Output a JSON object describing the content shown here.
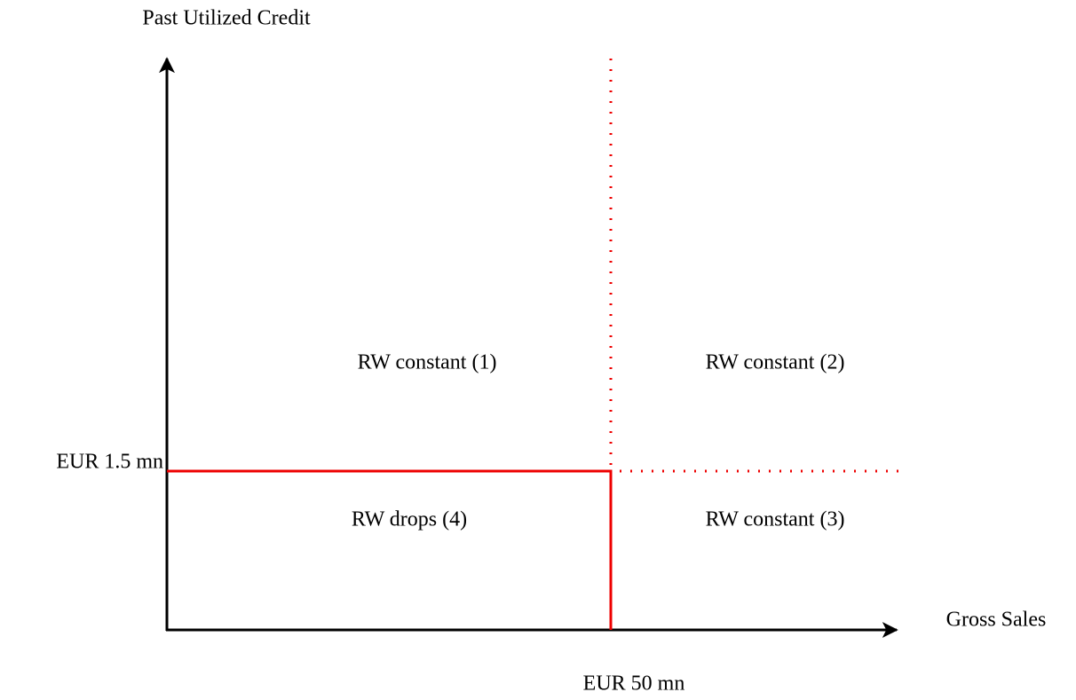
{
  "axes": {
    "y_label": "Past Utilized Credit",
    "x_label": "Gross Sales"
  },
  "thresholds": {
    "y_label": "EUR 1.5 mn",
    "x_label": "EUR 50 mn"
  },
  "regions": [
    {
      "label": "RW constant (1)"
    },
    {
      "label": "RW constant (2)"
    },
    {
      "label": "RW constant (3)"
    },
    {
      "label": "RW drops (4)"
    }
  ]
}
